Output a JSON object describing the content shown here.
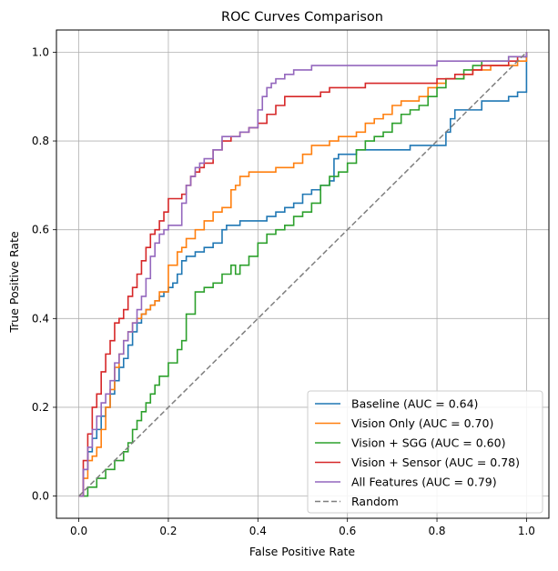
{
  "chart_data": {
    "type": "line",
    "title": "ROC Curves Comparison",
    "xlabel": "False Positive Rate",
    "ylabel": "True Positive Rate",
    "xlim": [
      -0.05,
      1.05
    ],
    "ylim": [
      -0.05,
      1.05
    ],
    "grid": true,
    "legend_position": "lower-right",
    "xticks": [
      "0.0",
      "0.2",
      "0.4",
      "0.6",
      "0.8",
      "1.0"
    ],
    "yticks": [
      "0.0",
      "0.2",
      "0.4",
      "0.6",
      "0.8",
      "1.0"
    ],
    "series": [
      {
        "name": "Baseline (AUC = 0.64)",
        "color": "#1f77b4",
        "dash": false,
        "x": [
          0,
          0.01,
          0.02,
          0.03,
          0.04,
          0.05,
          0.06,
          0.07,
          0.08,
          0.09,
          0.1,
          0.11,
          0.12,
          0.13,
          0.14,
          0.15,
          0.16,
          0.17,
          0.18,
          0.19,
          0.2,
          0.21,
          0.22,
          0.23,
          0.24,
          0.25,
          0.26,
          0.28,
          0.3,
          0.32,
          0.33,
          0.35,
          0.36,
          0.38,
          0.42,
          0.44,
          0.46,
          0.48,
          0.5,
          0.52,
          0.54,
          0.56,
          0.57,
          0.58,
          0.6,
          0.62,
          0.64,
          0.66,
          0.7,
          0.74,
          0.76,
          0.78,
          0.8,
          0.82,
          0.83,
          0.84,
          0.86,
          0.9,
          0.94,
          0.96,
          0.98,
          1.0
        ],
        "y": [
          0,
          0.06,
          0.1,
          0.13,
          0.15,
          0.18,
          0.2,
          0.23,
          0.26,
          0.29,
          0.31,
          0.34,
          0.37,
          0.39,
          0.41,
          0.42,
          0.43,
          0.44,
          0.45,
          0.46,
          0.47,
          0.48,
          0.5,
          0.53,
          0.54,
          0.54,
          0.55,
          0.56,
          0.57,
          0.6,
          0.61,
          0.61,
          0.62,
          0.62,
          0.63,
          0.64,
          0.65,
          0.66,
          0.68,
          0.69,
          0.7,
          0.71,
          0.76,
          0.77,
          0.77,
          0.78,
          0.78,
          0.78,
          0.78,
          0.79,
          0.79,
          0.79,
          0.79,
          0.82,
          0.85,
          0.87,
          0.87,
          0.89,
          0.89,
          0.9,
          0.91,
          1.0
        ]
      },
      {
        "name": "Vision Only (AUC = 0.70)",
        "color": "#ff7f0e",
        "dash": false,
        "x": [
          0,
          0.01,
          0.02,
          0.03,
          0.04,
          0.05,
          0.06,
          0.07,
          0.08,
          0.09,
          0.1,
          0.11,
          0.12,
          0.13,
          0.14,
          0.15,
          0.16,
          0.17,
          0.18,
          0.2,
          0.22,
          0.23,
          0.24,
          0.26,
          0.28,
          0.3,
          0.32,
          0.34,
          0.35,
          0.36,
          0.38,
          0.4,
          0.42,
          0.44,
          0.46,
          0.48,
          0.5,
          0.52,
          0.54,
          0.56,
          0.58,
          0.6,
          0.62,
          0.64,
          0.66,
          0.68,
          0.7,
          0.72,
          0.74,
          0.76,
          0.78,
          0.8,
          0.82,
          0.84,
          0.86,
          0.88,
          0.9,
          0.92,
          0.94,
          0.96,
          0.98,
          1.0
        ],
        "y": [
          0,
          0.04,
          0.08,
          0.09,
          0.11,
          0.15,
          0.2,
          0.24,
          0.29,
          0.32,
          0.35,
          0.37,
          0.39,
          0.4,
          0.41,
          0.42,
          0.43,
          0.44,
          0.46,
          0.52,
          0.55,
          0.56,
          0.58,
          0.6,
          0.62,
          0.64,
          0.65,
          0.69,
          0.7,
          0.72,
          0.73,
          0.73,
          0.73,
          0.74,
          0.74,
          0.75,
          0.77,
          0.79,
          0.79,
          0.8,
          0.81,
          0.81,
          0.82,
          0.84,
          0.85,
          0.86,
          0.88,
          0.89,
          0.89,
          0.9,
          0.92,
          0.93,
          0.94,
          0.94,
          0.95,
          0.96,
          0.96,
          0.97,
          0.97,
          0.97,
          0.98,
          1.0
        ]
      },
      {
        "name": "Vision + SGG (AUC = 0.60)",
        "color": "#2ca02c",
        "dash": false,
        "x": [
          0,
          0.02,
          0.04,
          0.06,
          0.08,
          0.1,
          0.11,
          0.12,
          0.13,
          0.14,
          0.15,
          0.16,
          0.17,
          0.18,
          0.19,
          0.2,
          0.22,
          0.23,
          0.24,
          0.26,
          0.28,
          0.3,
          0.32,
          0.34,
          0.35,
          0.36,
          0.38,
          0.4,
          0.42,
          0.44,
          0.46,
          0.48,
          0.5,
          0.52,
          0.54,
          0.56,
          0.58,
          0.6,
          0.62,
          0.64,
          0.66,
          0.68,
          0.7,
          0.72,
          0.74,
          0.76,
          0.78,
          0.8,
          0.82,
          0.84,
          0.86,
          0.88,
          0.9,
          0.92,
          0.94,
          0.96,
          0.98,
          1.0
        ],
        "y": [
          0,
          0.02,
          0.04,
          0.06,
          0.08,
          0.1,
          0.12,
          0.15,
          0.17,
          0.19,
          0.21,
          0.23,
          0.25,
          0.27,
          0.27,
          0.3,
          0.33,
          0.35,
          0.41,
          0.46,
          0.47,
          0.48,
          0.5,
          0.52,
          0.5,
          0.52,
          0.54,
          0.57,
          0.59,
          0.6,
          0.61,
          0.63,
          0.64,
          0.66,
          0.7,
          0.72,
          0.73,
          0.75,
          0.78,
          0.8,
          0.81,
          0.82,
          0.84,
          0.86,
          0.87,
          0.88,
          0.9,
          0.92,
          0.94,
          0.94,
          0.96,
          0.97,
          0.98,
          0.98,
          0.98,
          0.99,
          0.99,
          1.0
        ]
      },
      {
        "name": "Vision + Sensor (AUC = 0.78)",
        "color": "#d62728",
        "dash": false,
        "x": [
          0,
          0.01,
          0.02,
          0.03,
          0.04,
          0.05,
          0.06,
          0.07,
          0.08,
          0.09,
          0.1,
          0.11,
          0.12,
          0.13,
          0.14,
          0.15,
          0.16,
          0.17,
          0.18,
          0.19,
          0.2,
          0.22,
          0.23,
          0.24,
          0.25,
          0.26,
          0.27,
          0.28,
          0.3,
          0.32,
          0.34,
          0.35,
          0.36,
          0.38,
          0.4,
          0.42,
          0.44,
          0.46,
          0.48,
          0.5,
          0.52,
          0.54,
          0.56,
          0.58,
          0.6,
          0.64,
          0.68,
          0.72,
          0.76,
          0.8,
          0.84,
          0.88,
          0.9,
          0.92,
          0.94,
          0.96,
          0.98,
          1.0
        ],
        "y": [
          0,
          0.08,
          0.14,
          0.2,
          0.23,
          0.28,
          0.32,
          0.35,
          0.39,
          0.4,
          0.42,
          0.45,
          0.47,
          0.5,
          0.53,
          0.56,
          0.59,
          0.6,
          0.62,
          0.64,
          0.67,
          0.67,
          0.68,
          0.7,
          0.72,
          0.73,
          0.74,
          0.75,
          0.78,
          0.8,
          0.81,
          0.81,
          0.82,
          0.83,
          0.84,
          0.86,
          0.88,
          0.9,
          0.9,
          0.9,
          0.9,
          0.91,
          0.92,
          0.92,
          0.92,
          0.93,
          0.93,
          0.93,
          0.93,
          0.94,
          0.95,
          0.96,
          0.97,
          0.97,
          0.97,
          0.98,
          0.99,
          1.0
        ]
      },
      {
        "name": "All Features (AUC = 0.79)",
        "color": "#9467bd",
        "dash": false,
        "x": [
          0,
          0.01,
          0.02,
          0.03,
          0.04,
          0.05,
          0.06,
          0.07,
          0.08,
          0.09,
          0.1,
          0.11,
          0.12,
          0.13,
          0.14,
          0.15,
          0.16,
          0.17,
          0.18,
          0.19,
          0.2,
          0.22,
          0.23,
          0.24,
          0.25,
          0.26,
          0.27,
          0.28,
          0.3,
          0.32,
          0.34,
          0.36,
          0.38,
          0.4,
          0.41,
          0.42,
          0.43,
          0.44,
          0.46,
          0.48,
          0.5,
          0.52,
          0.54,
          0.56,
          0.58,
          0.6,
          0.64,
          0.68,
          0.72,
          0.76,
          0.8,
          0.84,
          0.88,
          0.92,
          0.96,
          1.0
        ],
        "y": [
          0,
          0.06,
          0.11,
          0.15,
          0.18,
          0.21,
          0.23,
          0.26,
          0.3,
          0.32,
          0.35,
          0.37,
          0.39,
          0.42,
          0.45,
          0.49,
          0.54,
          0.57,
          0.59,
          0.6,
          0.61,
          0.61,
          0.66,
          0.7,
          0.72,
          0.74,
          0.75,
          0.76,
          0.78,
          0.81,
          0.81,
          0.82,
          0.83,
          0.87,
          0.9,
          0.92,
          0.93,
          0.94,
          0.95,
          0.96,
          0.96,
          0.97,
          0.97,
          0.97,
          0.97,
          0.97,
          0.97,
          0.97,
          0.97,
          0.97,
          0.98,
          0.98,
          0.98,
          0.98,
          0.99,
          1.0
        ]
      },
      {
        "name": "Random",
        "color": "#7f7f7f",
        "dash": true,
        "x": [
          0,
          1
        ],
        "y": [
          0,
          1
        ]
      }
    ]
  }
}
